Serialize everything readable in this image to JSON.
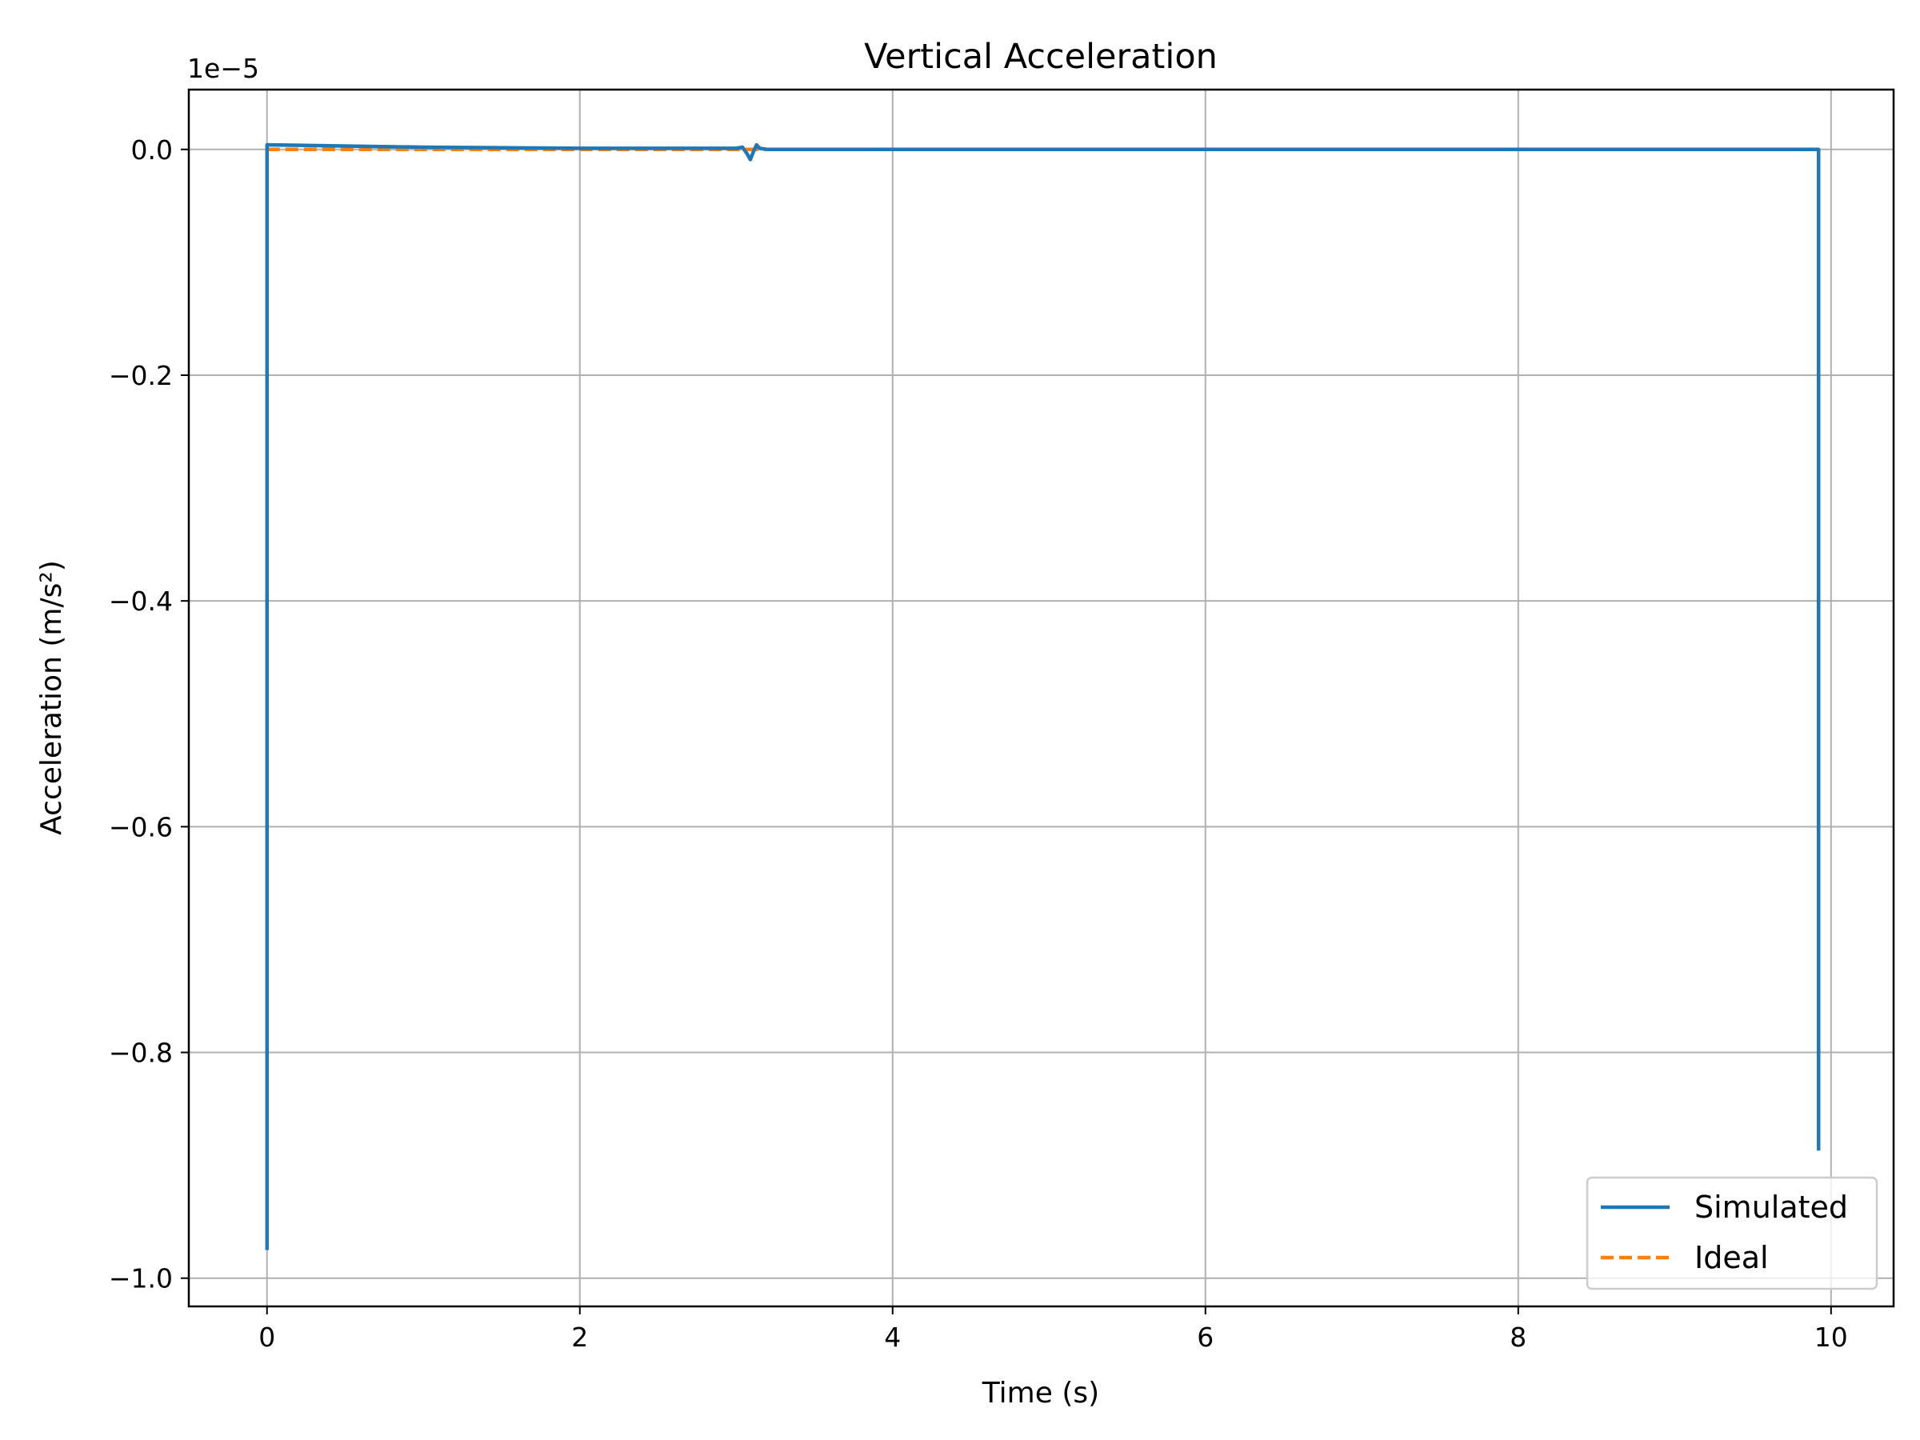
{
  "chart_data": {
    "type": "line",
    "title": "Vertical Acceleration",
    "xlabel": "Time (s)",
    "ylabel": "Acceleration (m/s²)",
    "y_offset_text": "1e−5",
    "y_scale_exponent": -5,
    "xlim": [
      -0.5,
      10.4
    ],
    "ylim": [
      -1.025,
      0.053
    ],
    "x_ticks": [
      0,
      2,
      4,
      6,
      8,
      10
    ],
    "x_tick_labels": [
      "0",
      "2",
      "4",
      "6",
      "8",
      "10"
    ],
    "y_ticks": [
      0.0,
      -0.2,
      -0.4,
      -0.6,
      -0.8,
      -1.0
    ],
    "y_tick_labels": [
      "0.0",
      "−0.2",
      "−0.4",
      "−0.6",
      "−0.8",
      "−1.0"
    ],
    "grid": true,
    "legend_position": "lower-right",
    "series": [
      {
        "name": "Simulated",
        "color": "#1f77b4",
        "dash": "solid",
        "x": [
          0.0,
          0.0,
          0.0,
          0.02,
          1.0,
          2.0,
          3.0,
          3.04,
          3.07,
          3.09,
          3.11,
          3.13,
          3.15,
          3.2,
          4.0,
          6.0,
          8.0,
          9.9,
          9.92,
          9.92
        ],
        "y": [
          -0.975,
          0.0,
          0.004,
          0.004,
          0.002,
          0.001,
          0.001,
          0.002,
          -0.004,
          -0.009,
          -0.002,
          0.004,
          0.001,
          0.0,
          0.0,
          0.0,
          0.0,
          0.0,
          0.0,
          -0.887
        ]
      },
      {
        "name": "Ideal",
        "color": "#ff7f0e",
        "dash": "dashed",
        "x": [
          0.0,
          9.92
        ],
        "y": [
          0.0,
          0.0
        ]
      }
    ]
  }
}
